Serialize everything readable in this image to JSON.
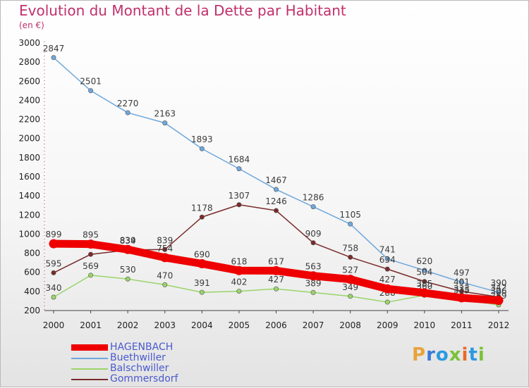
{
  "title": "Evolution du Montant de la Dette par Habitant",
  "subtitle": "(en €)",
  "logo": {
    "text": "Proxiti",
    "colors": [
      "#e8a33b",
      "#3a7ad6",
      "#2a9ae0",
      "#7ac23a",
      "#e86a2a",
      "#2a9ae0",
      "#7ac23a"
    ]
  },
  "chart_data": {
    "type": "line",
    "x": [
      "2000",
      "2001",
      "2002",
      "2003",
      "2004",
      "2005",
      "2006",
      "2007",
      "2008",
      "2009",
      "2010",
      "2011",
      "2012"
    ],
    "ylim": [
      200,
      3000
    ],
    "yticks": [
      200,
      400,
      600,
      800,
      1000,
      1200,
      1400,
      1600,
      1800,
      2000,
      2200,
      2400,
      2600,
      2800,
      3000
    ],
    "grid": false,
    "legend": "bottom-left",
    "series": [
      {
        "name": "Buethwiller",
        "color": "#6fa8dc",
        "values": [
          2847,
          2501,
          2270,
          2163,
          1893,
          1684,
          1467,
          1286,
          1105,
          741,
          620,
          497,
          390
        ]
      },
      {
        "name": "Gommersdorf",
        "color": "#7a2a2a",
        "values": [
          595,
          788,
          834,
          839,
          1178,
          1307,
          1246,
          909,
          758,
          634,
          504,
          401,
          342
        ]
      },
      {
        "name": "Balschwiller",
        "color": "#9ad46a",
        "values": [
          340,
          569,
          530,
          470,
          391,
          402,
          427,
          389,
          349,
          288,
          360,
          315,
          259
        ]
      },
      {
        "name": "HAGENBACH",
        "color": "#ee0000",
        "values": [
          899,
          895,
          839,
          754,
          690,
          618,
          617,
          563,
          527,
          427,
          385,
          333,
          306
        ]
      }
    ],
    "legend_order": [
      "HAGENBACH",
      "Buethwiller",
      "Balschwiller",
      "Gommersdorf"
    ]
  }
}
